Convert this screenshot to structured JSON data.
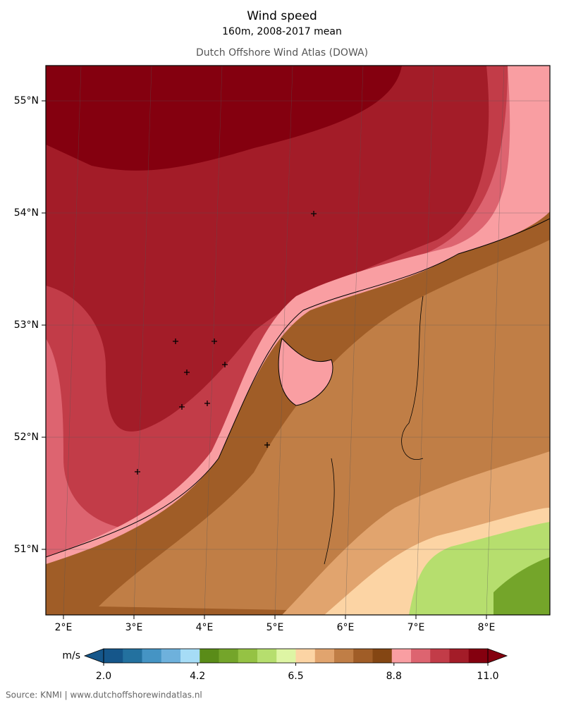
{
  "header": {
    "title": "Wind speed",
    "subtitle": "160m, 2008-2017 mean",
    "attribution": "Dutch Offshore Wind Atlas (DOWA)"
  },
  "map": {
    "lat_ticks": [
      {
        "value": 55,
        "label": "55°N"
      },
      {
        "value": 54,
        "label": "54°N"
      },
      {
        "value": 53,
        "label": "53°N"
      },
      {
        "value": 52,
        "label": "52°N"
      },
      {
        "value": 51,
        "label": "51°N"
      }
    ],
    "lon_ticks": [
      {
        "value": 2,
        "label": "2°E"
      },
      {
        "value": 3,
        "label": "3°E"
      },
      {
        "value": 4,
        "label": "4°E"
      },
      {
        "value": 5,
        "label": "5°E"
      },
      {
        "value": 6,
        "label": "6°E"
      },
      {
        "value": 7,
        "label": "7°E"
      },
      {
        "value": 8,
        "label": "8°E"
      }
    ]
  },
  "colorbar": {
    "unit": "m/s",
    "range": [
      2,
      11
    ],
    "ticks": [
      {
        "value": 2,
        "label": "2.0"
      },
      {
        "value": 4.2,
        "label": "4.2"
      },
      {
        "value": 6.5,
        "label": "6.5"
      },
      {
        "value": 8.8,
        "label": "8.8"
      },
      {
        "value": 11,
        "label": "11.0"
      }
    ],
    "colors": [
      "#15568a",
      "#23719f",
      "#4594c4",
      "#6eb1dc",
      "#a6dcf6",
      "#5a8c18",
      "#74a52a",
      "#95c244",
      "#b6de6e",
      "#def5a4",
      "#fcd4a4",
      "#e1a46e",
      "#c07e46",
      "#a05d27",
      "#844613",
      "#f99ea2",
      "#dd6470",
      "#c23c48",
      "#a31c28",
      "#84000f"
    ],
    "under_color": "#15568a",
    "over_color": "#84000f"
  },
  "footer": {
    "source": "Source: KNMI | www.dutchoffshorewindatlas.nl"
  }
}
